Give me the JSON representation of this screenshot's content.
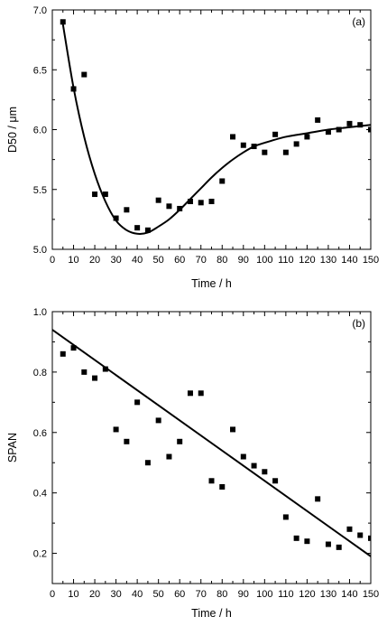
{
  "chart_data": [
    {
      "type": "scatter",
      "panel_label": "(a)",
      "xlabel": "Time  / h",
      "ylabel": "D50 / μm",
      "xlim": [
        0,
        150
      ],
      "ylim": [
        5.0,
        7.0
      ],
      "xticks": [
        "0",
        "10",
        "20",
        "30",
        "40",
        "50",
        "60",
        "70",
        "80",
        "90",
        "100",
        "110",
        "120",
        "130",
        "140",
        "150"
      ],
      "yticks": [
        "5.0",
        "5.5",
        "6.0",
        "6.5",
        "7.0"
      ],
      "grid": false,
      "series": [
        {
          "kind": "points",
          "marker": "square",
          "x": [
            5,
            10,
            15,
            20,
            25,
            30,
            35,
            40,
            45,
            50,
            55,
            60,
            65,
            70,
            75,
            80,
            85,
            90,
            95,
            100,
            105,
            110,
            115,
            120,
            125,
            130,
            135,
            140,
            145,
            150
          ],
          "y": [
            6.9,
            6.34,
            6.46,
            5.46,
            5.46,
            5.26,
            5.33,
            5.18,
            5.16,
            5.41,
            5.36,
            5.34,
            5.4,
            5.39,
            5.4,
            5.57,
            5.94,
            5.87,
            5.86,
            5.81,
            5.96,
            5.81,
            5.88,
            5.94,
            6.08,
            5.98,
            6.0,
            6.05,
            6.04,
            6.0
          ]
        },
        {
          "kind": "fit",
          "x": [
            5,
            10,
            15,
            20,
            25,
            30,
            35,
            40,
            45,
            50,
            55,
            60,
            65,
            70,
            75,
            80,
            85,
            90,
            95,
            100,
            110,
            120,
            130,
            140,
            150
          ],
          "y": [
            6.88,
            6.35,
            5.94,
            5.63,
            5.4,
            5.24,
            5.16,
            5.13,
            5.14,
            5.19,
            5.25,
            5.33,
            5.42,
            5.51,
            5.6,
            5.68,
            5.75,
            5.81,
            5.86,
            5.89,
            5.94,
            5.97,
            6.0,
            6.02,
            6.04
          ]
        }
      ]
    },
    {
      "type": "scatter",
      "panel_label": "(b)",
      "xlabel": "Time / h",
      "ylabel": "SPAN",
      "xlim": [
        0,
        150
      ],
      "ylim": [
        0.1,
        1.0
      ],
      "xticks": [
        "0",
        "10",
        "20",
        "30",
        "40",
        "50",
        "60",
        "70",
        "80",
        "90",
        "100",
        "110",
        "120",
        "130",
        "140",
        "150"
      ],
      "yticks": [
        "0.2",
        "0.4",
        "0.6",
        "0.8",
        "1.0"
      ],
      "grid": false,
      "series": [
        {
          "kind": "points",
          "marker": "square",
          "x": [
            5,
            10,
            15,
            20,
            25,
            30,
            35,
            40,
            45,
            50,
            55,
            60,
            65,
            70,
            75,
            80,
            85,
            90,
            95,
            100,
            105,
            110,
            115,
            120,
            125,
            130,
            135,
            140,
            145,
            150
          ],
          "y": [
            0.86,
            0.88,
            0.8,
            0.78,
            0.81,
            0.61,
            0.57,
            0.7,
            0.5,
            0.64,
            0.52,
            0.57,
            0.73,
            0.73,
            0.44,
            0.42,
            0.61,
            0.52,
            0.49,
            0.47,
            0.44,
            0.32,
            0.25,
            0.24,
            0.38,
            0.23,
            0.22,
            0.28,
            0.26,
            0.25
          ]
        },
        {
          "kind": "fit",
          "x": [
            0,
            150
          ],
          "y": [
            0.94,
            0.19
          ]
        }
      ]
    }
  ]
}
